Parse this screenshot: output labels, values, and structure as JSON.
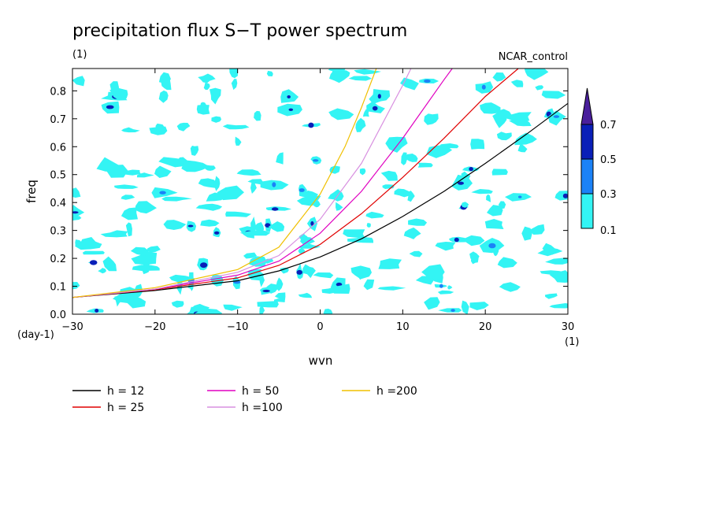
{
  "chart_data": {
    "type": "contour",
    "title": "precipitation flux S−T power spectrum",
    "subtitle": "(1)",
    "run_label": "NCAR_control",
    "xlabel": "wvn",
    "ylabel": "freq",
    "xunit": "(1)",
    "yunit": "(day-1)",
    "xlim": [
      -30,
      30
    ],
    "ylim": [
      0,
      0.88
    ],
    "xticks": [
      -30,
      -20,
      -10,
      0,
      10,
      20,
      30
    ],
    "yticks": [
      0.0,
      0.1,
      0.2,
      0.3,
      0.4,
      0.5,
      0.6,
      0.7,
      0.8
    ],
    "ytick_labels": [
      "0.0",
      "0.1",
      "0.2",
      "0.3",
      "0.4",
      "0.5",
      "0.6",
      "0.7",
      "0.8"
    ],
    "colorbar": {
      "levels": [
        "0.1",
        "0.3",
        "0.5",
        "0.7"
      ],
      "colors": [
        "#33f4f4",
        "#1b82f7",
        "#0a1fb8",
        "#4a1f9c"
      ]
    },
    "series": [
      {
        "name": "h = 12",
        "color": "#000000",
        "x": [
          -30,
          -20,
          -10,
          -5,
          0,
          5,
          10,
          15,
          20,
          25,
          30
        ],
        "y": [
          0.06,
          0.085,
          0.12,
          0.155,
          0.205,
          0.27,
          0.35,
          0.44,
          0.54,
          0.645,
          0.755
        ]
      },
      {
        "name": "h = 25",
        "color": "#e00000",
        "x": [
          -30,
          -20,
          -10,
          -5,
          0,
          5,
          10,
          15,
          20,
          24
        ],
        "y": [
          0.06,
          0.088,
          0.13,
          0.175,
          0.25,
          0.36,
          0.49,
          0.63,
          0.78,
          0.88
        ]
      },
      {
        "name": "h = 50",
        "color": "#e000c0",
        "x": [
          -30,
          -20,
          -10,
          -5,
          0,
          5,
          10,
          15,
          16
        ],
        "y": [
          0.06,
          0.09,
          0.14,
          0.19,
          0.29,
          0.44,
          0.63,
          0.84,
          0.88
        ]
      },
      {
        "name": "h =100",
        "color": "#d890e0",
        "x": [
          -30,
          -20,
          -10,
          -5,
          0,
          5,
          10,
          11
        ],
        "y": [
          0.06,
          0.09,
          0.15,
          0.21,
          0.34,
          0.54,
          0.82,
          0.88
        ]
      },
      {
        "name": "h =200",
        "color": "#f0c000",
        "x": [
          -30,
          -20,
          -10,
          -5,
          0,
          3,
          5,
          6.8
        ],
        "y": [
          0.06,
          0.095,
          0.16,
          0.24,
          0.43,
          0.6,
          0.74,
          0.88
        ]
      }
    ]
  }
}
